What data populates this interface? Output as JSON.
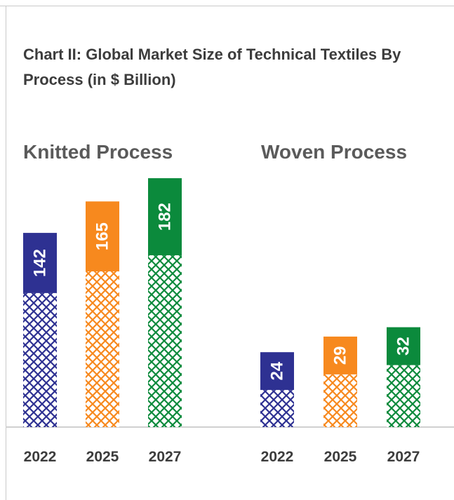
{
  "title": "Chart II: Global Market Size of Technical Textiles By Process (in $ Billion)",
  "chart_data": [
    {
      "type": "bar",
      "title": "Knitted Process",
      "categories": [
        "2022",
        "2025",
        "2027"
      ],
      "values": [
        142,
        165,
        182
      ],
      "labels": [
        "142",
        "165",
        "182"
      ],
      "colors": [
        "#2e3192",
        "#f7891e",
        "#0b8a3c"
      ]
    },
    {
      "type": "bar",
      "title": "Woven Process",
      "categories": [
        "2022",
        "2025",
        "2027"
      ],
      "values": [
        24,
        29,
        32
      ],
      "labels": [
        "24",
        "29",
        "32"
      ],
      "colors": [
        "#2e3192",
        "#f7891e",
        "#0b8a3c"
      ]
    }
  ]
}
